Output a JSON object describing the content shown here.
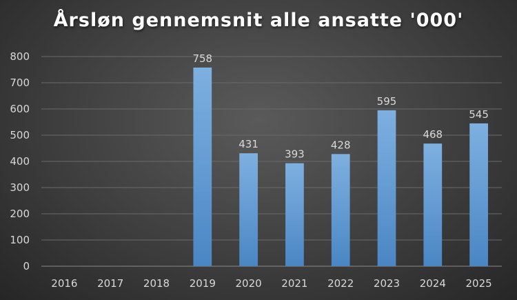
{
  "chart_data": {
    "type": "bar",
    "title": "Årsløn gennemsnit alle ansatte '000'",
    "xlabel": "",
    "ylabel": "",
    "categories": [
      "2016",
      "2017",
      "2018",
      "2019",
      "2020",
      "2021",
      "2022",
      "2023",
      "2024",
      "2025"
    ],
    "series": [
      {
        "values": [
          null,
          null,
          null,
          758,
          431,
          393,
          428,
          595,
          468,
          545
        ],
        "color": "#5b9bd5"
      }
    ],
    "data_labels": [
      "",
      "",
      "",
      "758",
      "431",
      "393",
      "428",
      "595",
      "468",
      "545"
    ],
    "ylim": [
      0,
      800
    ],
    "yticks": [
      0,
      100,
      200,
      300,
      400,
      500,
      600,
      700,
      800
    ],
    "ytick_labels": [
      "0",
      "100",
      "200",
      "300",
      "400",
      "500",
      "600",
      "700",
      "800"
    ],
    "grid": true,
    "legend": "none"
  }
}
